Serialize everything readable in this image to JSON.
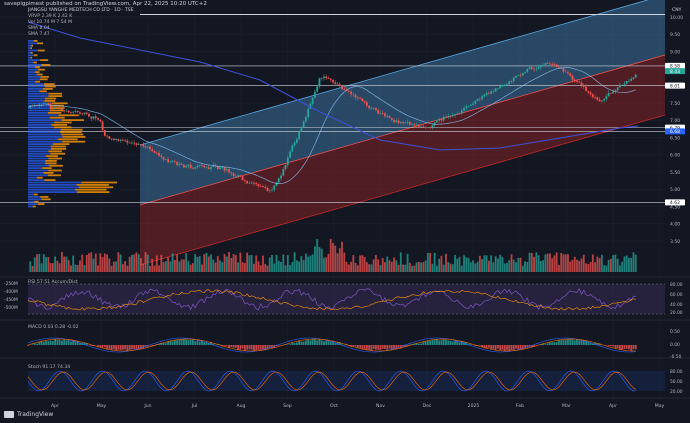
{
  "attribution": "savepigpimest published on TradingView.com, Apr 22, 2025 10:20 UTC+2",
  "logo_text": "TradingView",
  "symbol_line": "JIANGSU YANGHE MEDTECH CO LTD · 1D · TSE",
  "indicators": {
    "vrvp_label": "VRVP",
    "vrvp_values": "2.39 K   2.42 K",
    "vol_label": "Vol",
    "vol_values": "10.74 M   7.54 M",
    "sma1": "SMA  8.04",
    "sma2": "SMA  7.47"
  },
  "price_scale": {
    "labels": [
      "10.00",
      "9.50",
      "9.00",
      "8.50",
      "8.00",
      "7.50",
      "7.00",
      "6.50",
      "6.00",
      "5.50",
      "5.00",
      "4.50",
      "4.00",
      "3.50"
    ],
    "currency": "CNY",
    "badges": [
      {
        "text": "8.58",
        "color": "#ffffff",
        "text_color": "#131722"
      },
      {
        "text": "8.43",
        "color": "#26a69a",
        "text_color": "#ffffff"
      },
      {
        "text": "8.01",
        "color": "#ffffff",
        "text_color": "#131722"
      },
      {
        "text": "6.79",
        "color": "#ffffff",
        "text_color": "#131722"
      },
      {
        "text": "6.68",
        "color": "#2962ff",
        "text_color": "#ffffff"
      },
      {
        "text": "4.62",
        "color": "#ffffff",
        "text_color": "#131722"
      }
    ]
  },
  "x_axis": {
    "labels": [
      "Apr",
      "May",
      "Jun",
      "Jul",
      "Aug",
      "Sep",
      "Oct",
      "Nov",
      "Dec",
      "2025",
      "Feb",
      "Mar",
      "Apr",
      "May"
    ]
  },
  "rsi_pane": {
    "label": "RSI  57.51   Accum/Dist",
    "left_labels": [
      "-250M",
      "-400M",
      "-450M",
      "-500M"
    ],
    "right_labels": [
      "80.00",
      "60.00",
      "40.00",
      "20.00"
    ]
  },
  "macd_pane": {
    "label": "MACD  0.03  0.28  -0.02",
    "right_labels": [
      "0.50",
      "0.00",
      "-0.50"
    ]
  },
  "stoch_pane": {
    "label": "Stoch  91.17  74.34",
    "right_labels": [
      "80.00",
      "50.00",
      "20.00"
    ]
  },
  "colors": {
    "background": "#131722",
    "up": "#26a69a",
    "down": "#ef5350",
    "channel_upper": "#4fa3e3",
    "channel_lower": "#c62828",
    "profile": "#ff9800",
    "profile_up": "#2962ff",
    "sma_long": "#3f51d8",
    "sma_short": "#90caf9"
  }
}
